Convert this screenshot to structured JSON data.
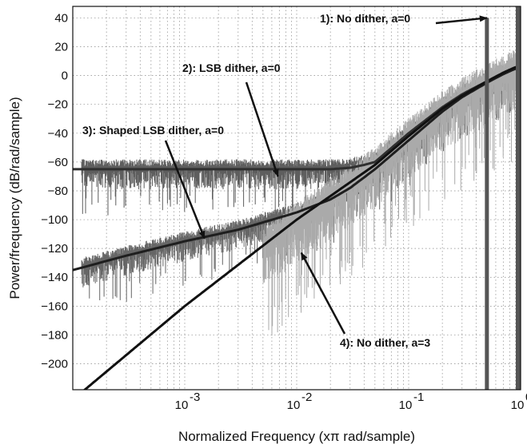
{
  "chart_data": {
    "type": "line",
    "xlabel": "Normalized Frequency  (xπ rad/sample)",
    "ylabel": "Power/frequency (dB/rad/sample)",
    "x_scale": "log",
    "xlim": [
      0.0001,
      1
    ],
    "ylim": [
      -218,
      48
    ],
    "grid": true,
    "x_ticks": [
      0.001,
      0.01,
      0.1,
      1
    ],
    "x_tick_labels": [
      {
        "base": "10",
        "exp": "-3"
      },
      {
        "base": "10",
        "exp": "-2"
      },
      {
        "base": "10",
        "exp": "-1"
      },
      {
        "base": "10",
        "exp": "0"
      }
    ],
    "y_ticks": [
      40,
      20,
      0,
      -20,
      -40,
      -60,
      -80,
      -100,
      -120,
      -140,
      -160,
      -180,
      -200
    ],
    "y_tick_labels": [
      "40",
      "20",
      "0",
      "−20",
      "−40",
      "−60",
      "−80",
      "−100",
      "−120",
      "−140",
      "−160",
      "−180",
      "−200"
    ],
    "annotations": [
      {
        "text": "1): No dither, a=0",
        "arrow_to": [
          0.5,
          40
        ]
      },
      {
        "text": "2): LSB dither, a=0",
        "arrow_to": [
          0.0068,
          -70
        ]
      },
      {
        "text": "3): Shaped LSB dither, a=0",
        "arrow_to": [
          0.0015,
          -113
        ]
      },
      {
        "text": "4): No dither, a=3",
        "arrow_to": [
          0.011,
          -123
        ]
      }
    ],
    "series": [
      {
        "color": "#2f2f2f",
        "x": [
          0.0001,
          0.001,
          0.01,
          0.02,
          0.03,
          0.04,
          0.05,
          0.1,
          0.2,
          0.3,
          0.5,
          0.7,
          0.85,
          1.0
        ],
        "y": [
          -65,
          -65,
          -65,
          -65,
          -64,
          -62,
          -60,
          -40,
          -22,
          -13,
          -4,
          1,
          4,
          6
        ]
      },
      {
        "color": "#1e1e1e",
        "x": [
          0.0001,
          0.0003,
          0.001,
          0.003,
          0.01,
          0.02,
          0.03,
          0.05,
          0.1,
          0.2,
          0.3,
          0.5,
          0.7,
          0.85,
          1.0
        ],
        "y": [
          -135,
          -125,
          -115,
          -107,
          -95,
          -86,
          -78,
          -65,
          -45,
          -25,
          -15,
          -5,
          1,
          4,
          6
        ]
      },
      {
        "color": "#111111",
        "x": [
          0.0001,
          0.001,
          0.01,
          0.05,
          0.1,
          0.2,
          0.3,
          0.5,
          0.7,
          0.85,
          1.0
        ],
        "y": [
          -225,
          -160,
          -100,
          -62,
          -42,
          -23,
          -14,
          -4,
          2,
          5,
          7
        ]
      },
      {
        "color": "#555555",
        "x": [
          0.5,
          0.5
        ],
        "y": [
          -218,
          40
        ]
      }
    ]
  }
}
